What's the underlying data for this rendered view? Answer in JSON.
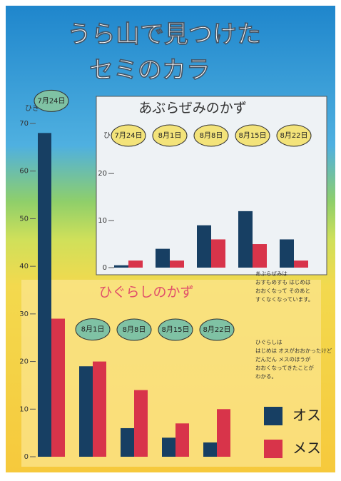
{
  "title": [
    "うら山で見つけた",
    "セミのカラ"
  ],
  "notes": [
    [
      "あぶらぜみは",
      "おすもめすも はじめは",
      "おおくなって そのあと",
      "すくなくなっています。"
    ],
    [
      "ひぐらしは",
      "はじめは オスがおおかったけど",
      "だんだん メスのほうが",
      "おおくなってきたことが",
      "わかる。"
    ]
  ],
  "chart_data": [
    {
      "type": "bar",
      "title": "ひぐらしのかず",
      "y_label": "ひき",
      "categories": [
        "7月24日",
        "8月1日",
        "8月8日",
        "8月15日",
        "8月22日"
      ],
      "series": [
        {
          "name": "オス",
          "color": "#173f63",
          "values": [
            68,
            19,
            6,
            4,
            3
          ]
        },
        {
          "name": "メス",
          "color": "#d8344a",
          "values": [
            29,
            20,
            14,
            7,
            10
          ]
        }
      ],
      "ylim": [
        0,
        70
      ],
      "yticks": [
        0,
        10,
        20,
        30,
        40,
        50,
        60,
        70
      ]
    },
    {
      "type": "bar",
      "title": "あぶらぜみのかず",
      "y_label": "ひき",
      "categories": [
        "7月24日",
        "8月1日",
        "8月8日",
        "8月15日",
        "8月22日"
      ],
      "series": [
        {
          "name": "オス",
          "color": "#173f63",
          "values": [
            0.5,
            4,
            9,
            12,
            6
          ]
        },
        {
          "name": "メス",
          "color": "#d8344a",
          "values": [
            1.5,
            1.5,
            6,
            5,
            1.5
          ]
        }
      ],
      "ylim": [
        0,
        27
      ],
      "yticks": [
        0,
        10,
        20
      ]
    }
  ]
}
